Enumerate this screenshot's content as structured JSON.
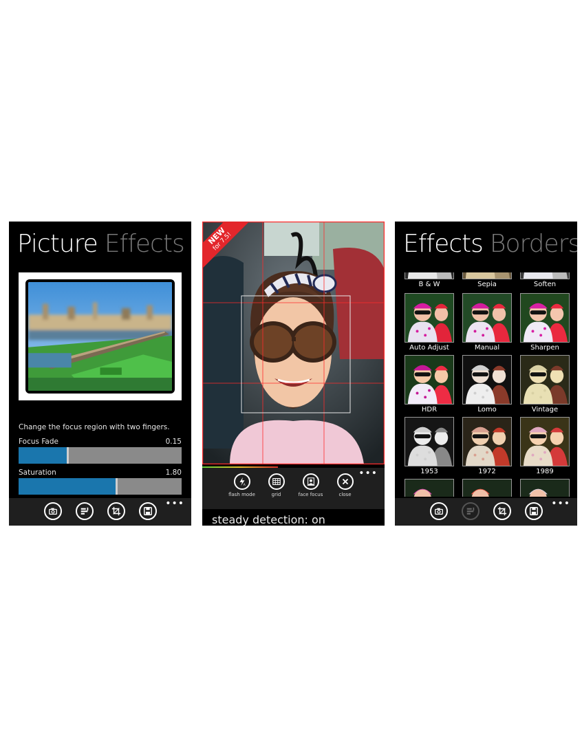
{
  "screen1": {
    "pivot_active": "Picture",
    "pivot_inactive": "Effects",
    "hint": "Change the focus region with two fingers.",
    "sliders": [
      {
        "label": "Focus Fade",
        "value": "0.15",
        "fill_fraction": 0.3
      },
      {
        "label": "Saturation",
        "value": "1.80",
        "fill_fraction": 0.6
      }
    ],
    "appbar_icons": [
      "camera-icon",
      "effects-icon",
      "crop-icon",
      "save-icon"
    ],
    "more": "•••"
  },
  "screen2": {
    "badge_line1": "NEW",
    "badge_line2": "for 7.5!",
    "buttons": [
      {
        "label": "flash mode",
        "icon": "flash-icon"
      },
      {
        "label": "grid",
        "icon": "grid-icon"
      },
      {
        "label": "face focus",
        "icon": "face-focus-icon"
      },
      {
        "label": "close",
        "icon": "close-icon"
      }
    ],
    "status": "steady detection: on",
    "more": "•••"
  },
  "screen3": {
    "pivot_active": "Effects",
    "pivot_inactive": "Borders",
    "effects": [
      "B & W",
      "Sepia",
      "Soften",
      "Auto Adjust",
      "Manual",
      "Sharpen",
      "HDR",
      "Lomo",
      "Vintage",
      "1953",
      "1972",
      "1989"
    ],
    "appbar_icons": [
      "camera-icon",
      "effects-icon",
      "crop-icon",
      "save-icon"
    ],
    "more": "•••"
  }
}
